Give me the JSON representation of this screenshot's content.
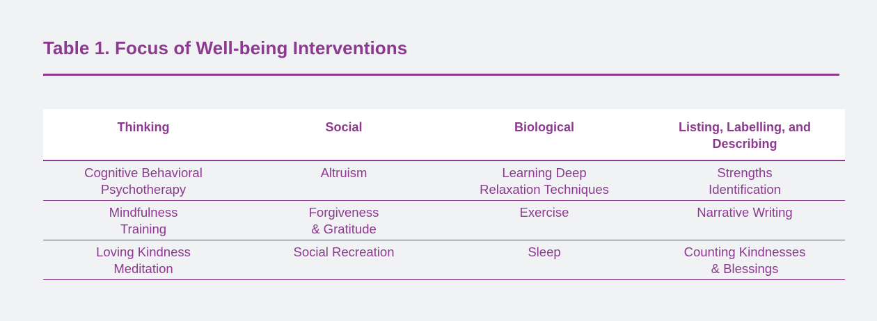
{
  "title": "Table 1. Focus of Well-being Interventions",
  "table": {
    "headers": [
      "Thinking",
      "Social",
      "Biological",
      "Listing, Labelling, and Describing"
    ],
    "rows": [
      [
        [
          "Cognitive Behavioral",
          "Psychotherapy"
        ],
        [
          "Altruism"
        ],
        [
          "Learning Deep",
          "Relaxation Techniques"
        ],
        [
          "Strengths",
          "Identification"
        ]
      ],
      [
        [
          "Mindfulness",
          "Training"
        ],
        [
          "Forgiveness",
          "& Gratitude"
        ],
        [
          "Exercise"
        ],
        [
          "Narrative Writing"
        ]
      ],
      [
        [
          "Loving Kindness",
          "Meditation"
        ],
        [
          "Social Recreation"
        ],
        [
          "Sleep"
        ],
        [
          "Counting Kindnesses",
          "& Blessings"
        ]
      ]
    ]
  }
}
